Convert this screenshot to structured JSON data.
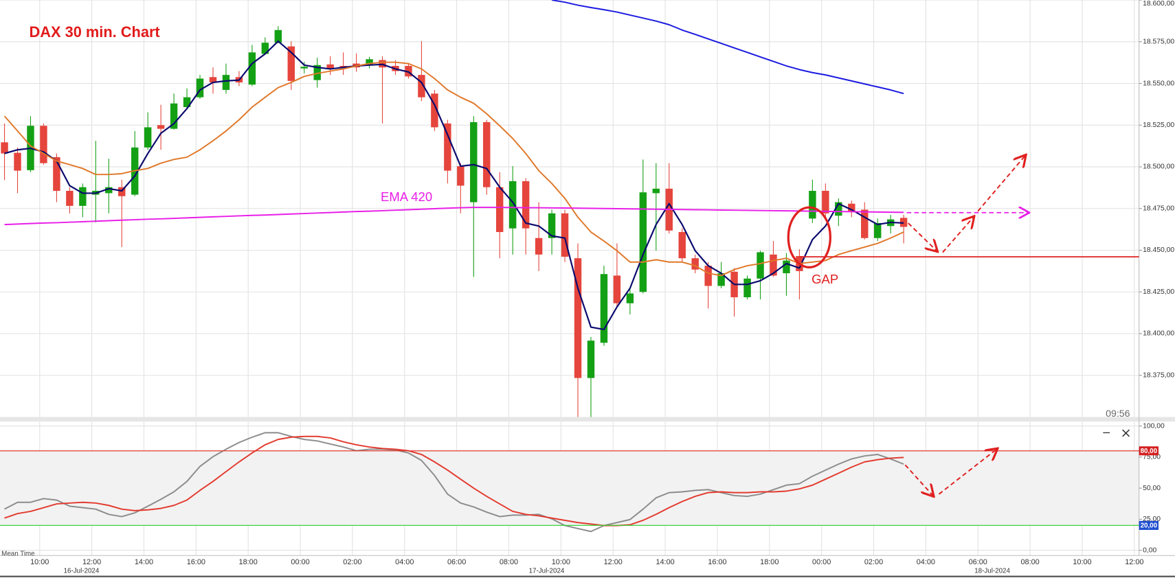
{
  "chart_data": [
    {
      "type": "candlestick",
      "title": "DAX 30 min. Chart",
      "gap_label": "GAP",
      "clock": "09:56",
      "x": [
        0,
        1,
        2,
        3,
        4,
        5,
        6,
        7,
        8,
        9,
        10,
        11,
        12,
        13,
        14,
        15,
        16,
        17,
        18,
        19,
        20,
        21,
        22,
        23,
        24,
        25,
        26,
        27,
        28,
        29,
        30,
        31,
        32,
        33,
        34,
        35,
        36,
        37,
        38,
        39,
        40,
        41,
        42,
        43,
        44,
        45,
        46,
        47,
        48,
        49,
        50,
        51,
        52,
        53,
        54,
        55,
        56,
        57,
        58,
        59,
        60,
        61,
        62,
        63,
        64,
        65,
        66,
        67,
        68,
        69
      ],
      "open": [
        18514.7,
        18508.4,
        18498,
        18524.6,
        18505.8,
        18485.6,
        18476.6,
        18483.3,
        18484.2,
        18487.8,
        18483.3,
        18511.6,
        18525,
        18522.8,
        18535.8,
        18541.7,
        18553.8,
        18546.1,
        18553.8,
        18549.3,
        18567.7,
        18574.4,
        18572.2,
        18559,
        18552,
        18561.4,
        18560.5,
        18561.9,
        18561,
        18564,
        18560.5,
        18560.5,
        18555.1,
        18543.9,
        18526,
        18500.4,
        18478.8,
        18526.8,
        18487.8,
        18463.1,
        18491.4,
        18457.3,
        18457.3,
        18472.1,
        18445.2,
        18373.4,
        18394.5,
        18434.8,
        18418.2,
        18425,
        18484.2,
        18486.9,
        18460.9,
        18445.2,
        18440.7,
        18428.6,
        18437.1,
        18421.8,
        18433,
        18447.4,
        18436.2,
        18446.5,
        18469,
        18485.6,
        18470.7,
        18477.9,
        18474.3,
        18457.3,
        18464.5,
        18469.4
      ],
      "high": [
        18526,
        18511.6,
        18530.4,
        18526,
        18508,
        18487.8,
        18490,
        18515.6,
        18504.9,
        18492.3,
        18521.5,
        18532.7,
        18537.2,
        18543.9,
        18547,
        18555.1,
        18559.6,
        18561.9,
        18557.4,
        18573.1,
        18577.6,
        18584.3,
        18575.3,
        18563,
        18565.4,
        18566.3,
        18568.6,
        18568,
        18566,
        18566.3,
        18564,
        18561.9,
        18575.3,
        18546.1,
        18528.2,
        18502.2,
        18530.4,
        18528.2,
        18496.8,
        18500.4,
        18493.2,
        18478.8,
        18474.3,
        18474.3,
        18454.1,
        18398,
        18440.7,
        18454.1,
        18427.2,
        18504.4,
        18502.2,
        18502.2,
        18463.1,
        18447.4,
        18442.9,
        18442.9,
        18439.3,
        18434.8,
        18449.7,
        18455.5,
        18448.3,
        18450.6,
        18492.3,
        18490,
        18481.1,
        18479.7,
        18478.8,
        18469,
        18471.2,
        18471.2
      ],
      "low": [
        18492,
        18484.2,
        18496.8,
        18501.3,
        18478.8,
        18472,
        18469.8,
        18466.7,
        18472.1,
        18451.9,
        18482.4,
        18510.2,
        18510.2,
        18522.4,
        18535,
        18540.8,
        18543.9,
        18543.9,
        18548.4,
        18548.4,
        18567.7,
        18574,
        18546.1,
        18556,
        18547.5,
        18555.1,
        18555.1,
        18557,
        18559,
        18526,
        18555.1,
        18552.9,
        18539.4,
        18521.5,
        18490,
        18472.1,
        18434,
        18483.3,
        18445.2,
        18447.4,
        18447.4,
        18437.5,
        18447.4,
        18442.9,
        18350,
        18350,
        18392.7,
        18416,
        18411.5,
        18424.1,
        18449.7,
        18460,
        18442.9,
        18436.2,
        18415.1,
        18427.2,
        18410.2,
        18420.5,
        18420.5,
        18434,
        18422.7,
        18420.5,
        18466.3,
        18469.8,
        18464.5,
        18469.8,
        18456.4,
        18455.5,
        18460,
        18454.1
      ],
      "close": [
        18508,
        18497.7,
        18524.6,
        18502.2,
        18485.6,
        18476.6,
        18487.8,
        18485.6,
        18487.8,
        18482.4,
        18511.6,
        18523.7,
        18522.8,
        18538,
        18541.7,
        18552.9,
        18550.6,
        18555.1,
        18550.6,
        18568.6,
        18574.4,
        18582,
        18551.5,
        18560,
        18561,
        18558.7,
        18559.6,
        18559.6,
        18564.5,
        18559.6,
        18557.4,
        18554.2,
        18541.7,
        18523.7,
        18497.7,
        18488.7,
        18526.8,
        18487.8,
        18460.9,
        18491.4,
        18463.1,
        18447.4,
        18472.1,
        18446.1,
        18373.4,
        18395.8,
        18435.7,
        18418.2,
        18424.1,
        18484.7,
        18486.9,
        18461.8,
        18445.2,
        18438.4,
        18428.6,
        18436.2,
        18421.8,
        18433,
        18448.8,
        18434.8,
        18443.8,
        18437.5,
        18485.6,
        18472.1,
        18478.8,
        18473.4,
        18457.3,
        18466.3,
        18468.5,
        18464
      ],
      "up_color": "#14a014",
      "down_color": "#e5453c",
      "series": [
        {
          "color": "#0a0a6e",
          "values": [
            18508,
            18510.2,
            18511.1,
            18508.9,
            18503.5,
            18488.7,
            18484.2,
            18484.2,
            18486.9,
            18485.6,
            18494.5,
            18508,
            18520.1,
            18525.9,
            18534.9,
            18546.1,
            18550.6,
            18551.5,
            18552,
            18561.9,
            18567.7,
            18575.3,
            18568.6,
            18561,
            18559.6,
            18558.7,
            18559.6,
            18560.5,
            18561,
            18561.4,
            18558.7,
            18556.9,
            18550.6,
            18537.2,
            18519.2,
            18500.4,
            18501.3,
            18499,
            18487.8,
            18478.8,
            18466.3,
            18464.5,
            18458.6,
            18457.3,
            18427.2,
            18403.9,
            18402.5,
            18416,
            18427.2,
            18447.4,
            18465.4,
            18477.9,
            18465.4,
            18449.7,
            18440.7,
            18436.2,
            18429.5,
            18429.5,
            18431.7,
            18436.2,
            18442,
            18439.3,
            18456.4,
            18464.5,
            18477.9,
            18474.3,
            18469.8,
            18465.4,
            18466.7,
            18466.3
          ]
        },
        {
          "color": "#e0782a",
          "values": [
            18530.4,
            18521.5,
            18512.5,
            18508,
            18503.5,
            18501.3,
            18499,
            18495.4,
            18495.4,
            18495.9,
            18497.7,
            18499,
            18502.2,
            18504.4,
            18505.8,
            18510.2,
            18515.6,
            18521.5,
            18528.2,
            18535.8,
            18541.7,
            18547.5,
            18550.6,
            18554.2,
            18556,
            18557.4,
            18558.7,
            18560.5,
            18561.9,
            18562.7,
            18562.7,
            18561.9,
            18558.7,
            18552.9,
            18546.1,
            18541.7,
            18538.1,
            18531.8,
            18524.6,
            18517,
            18508,
            18497.7,
            18490,
            18481.1,
            18469.8,
            18460.9,
            18455.5,
            18449.7,
            18442.9,
            18442.9,
            18444.3,
            18442.9,
            18442.9,
            18440.7,
            18436.2,
            18434.8,
            18438.4,
            18440.7,
            18442,
            18443.8,
            18445.2,
            18442,
            18442.9,
            18443.8,
            18447.4,
            18449.7,
            18451.9,
            18454.1,
            18457.3,
            18460.9
          ]
        },
        {
          "color": "#1a1ae0",
          "values": [
            null,
            null,
            null,
            null,
            null,
            null,
            null,
            null,
            null,
            null,
            null,
            null,
            null,
            null,
            null,
            null,
            null,
            null,
            null,
            null,
            null,
            null,
            null,
            null,
            null,
            null,
            null,
            null,
            null,
            null,
            null,
            null,
            null,
            null,
            null,
            null,
            null,
            null,
            null,
            null,
            null,
            null,
            18600,
            18598.7,
            18596.9,
            18595.5,
            18594.2,
            18592.8,
            18591,
            18589.2,
            18587.4,
            18585.2,
            18582,
            18579.4,
            18576.7,
            18574,
            18571.3,
            18568.6,
            18565.9,
            18563.2,
            18560.5,
            18558.3,
            18556.5,
            18555.1,
            18553.3,
            18551.5,
            18549.7,
            18547.9,
            18546.1,
            18543.9
          ]
        },
        {
          "name": "EMA 420",
          "color": "#e81ee8",
          "values": [
            18465.4,
            18465.7,
            18466,
            18466.3,
            18466.5,
            18466.8,
            18467.1,
            18467.4,
            18467.7,
            18468,
            18468.3,
            18468.6,
            18468.8,
            18469.1,
            18469.4,
            18469.7,
            18470,
            18470.3,
            18470.6,
            18470.9,
            18471.1,
            18471.4,
            18471.7,
            18472,
            18472.3,
            18472.6,
            18472.9,
            18473.2,
            18473.4,
            18473.7,
            18474,
            18474.3,
            18474.6,
            18474.9,
            18475.2,
            18475.5,
            18475.7,
            18475.7,
            18475.7,
            18475.6,
            18475.5,
            18475.5,
            18475.4,
            18475.3,
            18475.2,
            18475.1,
            18475,
            18474.9,
            18474.8,
            18474.7,
            18474.6,
            18474.5,
            18474.4,
            18474.3,
            18474.2,
            18474.1,
            18474,
            18473.9,
            18473.8,
            18473.7,
            18473.6,
            18473.5,
            18473.4,
            18473.3,
            18473.2,
            18473.1,
            18473,
            18472.9,
            18472.8,
            18472.7
          ]
        }
      ],
      "xlim": [
        -0.345,
        87.06
      ],
      "ylim": [
        18350,
        18600
      ],
      "xticks": [
        {
          "value": 2.7,
          "label": "10:00"
        },
        {
          "value": 6.7,
          "label": "12:00"
        },
        {
          "value": 10.7,
          "label": "14:00"
        },
        {
          "value": 14.7,
          "label": "16:00"
        },
        {
          "value": 18.7,
          "label": "18:00"
        },
        {
          "value": 22.7,
          "label": "00:00"
        },
        {
          "value": 26.7,
          "label": "02:00"
        },
        {
          "value": 30.7,
          "label": "04:00"
        },
        {
          "value": 34.7,
          "label": "06:00"
        },
        {
          "value": 38.7,
          "label": "08:00"
        },
        {
          "value": 42.7,
          "label": "10:00"
        },
        {
          "value": 46.7,
          "label": "12:00"
        },
        {
          "value": 50.7,
          "label": "14:00"
        },
        {
          "value": 54.7,
          "label": "16:00"
        },
        {
          "value": 58.7,
          "label": "18:00"
        },
        {
          "value": 62.7,
          "label": "00:00"
        },
        {
          "value": 66.7,
          "label": "02:00"
        },
        {
          "value": 70.7,
          "label": "04:00"
        },
        {
          "value": 74.7,
          "label": "06:00"
        },
        {
          "value": 78.7,
          "label": "08:00"
        },
        {
          "value": 82.7,
          "label": "10:00"
        },
        {
          "value": 86.7,
          "label": "12:00"
        }
      ],
      "date_ticks": [
        {
          "value": 5.9,
          "label": "16-Jul-2024"
        },
        {
          "value": 41.6,
          "label": "17-Jul-2024"
        },
        {
          "value": 75.8,
          "label": "18-Jul-2024"
        }
      ],
      "yticks": [
        {
          "value": 18375,
          "label": "18.375,00"
        },
        {
          "value": 18400,
          "label": "18.400,00"
        },
        {
          "value": 18425,
          "label": "18.425,00"
        },
        {
          "value": 18450,
          "label": "18.450,00"
        },
        {
          "value": 18475,
          "label": "18.475,00"
        },
        {
          "value": 18500,
          "label": "18.500,00"
        },
        {
          "value": 18525,
          "label": "18.525,00"
        },
        {
          "value": 18550,
          "label": "18.550,00"
        },
        {
          "value": 18575,
          "label": "18.575,00"
        },
        {
          "value": 18600,
          "label": "18.600,00"
        }
      ],
      "grid": true
    },
    {
      "type": "line",
      "xlabel": "Mean Time",
      "x": [
        0,
        1,
        2,
        3,
        4,
        5,
        6,
        7,
        8,
        9,
        10,
        11,
        12,
        13,
        14,
        15,
        16,
        17,
        18,
        19,
        20,
        21,
        22,
        23,
        24,
        25,
        26,
        27,
        28,
        29,
        30,
        31,
        32,
        33,
        34,
        35,
        36,
        37,
        38,
        39,
        40,
        41,
        42,
        43,
        44,
        45,
        46,
        47,
        48,
        49,
        50,
        51,
        52,
        53,
        54,
        55,
        56,
        57,
        58,
        59,
        60,
        61,
        62,
        63,
        64,
        65,
        66,
        67,
        68,
        69
      ],
      "series": [
        {
          "color": "#8c8c8c",
          "values": [
            33.1,
            38.6,
            38.6,
            41.6,
            40.4,
            35.5,
            34.3,
            33.1,
            28.9,
            27.1,
            30.1,
            35.5,
            41,
            47,
            55.4,
            67.5,
            75.3,
            81.3,
            86.7,
            91,
            94.6,
            94.6,
            91.6,
            89.2,
            88,
            85.5,
            83.1,
            80.1,
            81.3,
            81.3,
            80.7,
            78.3,
            72.3,
            60.2,
            45.2,
            38,
            34.9,
            30.7,
            27.1,
            28.3,
            28.3,
            28.9,
            25.3,
            19.9,
            17.5,
            15.1,
            19.9,
            22.3,
            24.7,
            33.1,
            42.2,
            46.4,
            47,
            48.2,
            48.8,
            46.4,
            44,
            43.4,
            45.2,
            48.8,
            52.4,
            53.6,
            59.6,
            64.5,
            69.3,
            73.5,
            75.9,
            77.1,
            73.5,
            69.3
          ]
        },
        {
          "color": "#e33a2e",
          "values": [
            25.9,
            29.5,
            31.3,
            34.3,
            37.3,
            38,
            38.6,
            38,
            36.1,
            33.1,
            31.9,
            32.5,
            33.7,
            36.1,
            40.4,
            48.2,
            55.4,
            63.3,
            71.1,
            78.3,
            84.9,
            89.2,
            91,
            91.6,
            91.6,
            90.4,
            87.3,
            84.9,
            83.1,
            81.9,
            81.3,
            80.1,
            77.1,
            71.1,
            64.5,
            57.2,
            50,
            43.4,
            37.3,
            31.3,
            28.9,
            27.7,
            25.9,
            24.1,
            22.3,
            21.1,
            19.9,
            19.9,
            20.5,
            24.1,
            28.9,
            34.3,
            39.2,
            43.4,
            46.4,
            47,
            46.4,
            46.4,
            47,
            47,
            47.6,
            49.4,
            52.4,
            57.2,
            62,
            66.9,
            71.1,
            72.9,
            74.1,
            74.7
          ]
        }
      ],
      "xlim": [
        -0.345,
        87.06
      ],
      "ylim": [
        0,
        100
      ],
      "yticks": [
        {
          "value": 0,
          "label": "0,00"
        },
        {
          "value": 25,
          "label": "25,00"
        },
        {
          "value": 50,
          "label": "50,00"
        },
        {
          "value": 75,
          "label": "75,00"
        },
        {
          "value": 100,
          "label": "100,00"
        }
      ],
      "levels": [
        {
          "value": 80,
          "label": "80,00",
          "color": "#e33a2e",
          "box_color": "#d32020"
        },
        {
          "value": 20,
          "label": "20,00",
          "color": "#3cd23c",
          "box_color": "#1f4fd0"
        }
      ],
      "grid": true
    }
  ]
}
